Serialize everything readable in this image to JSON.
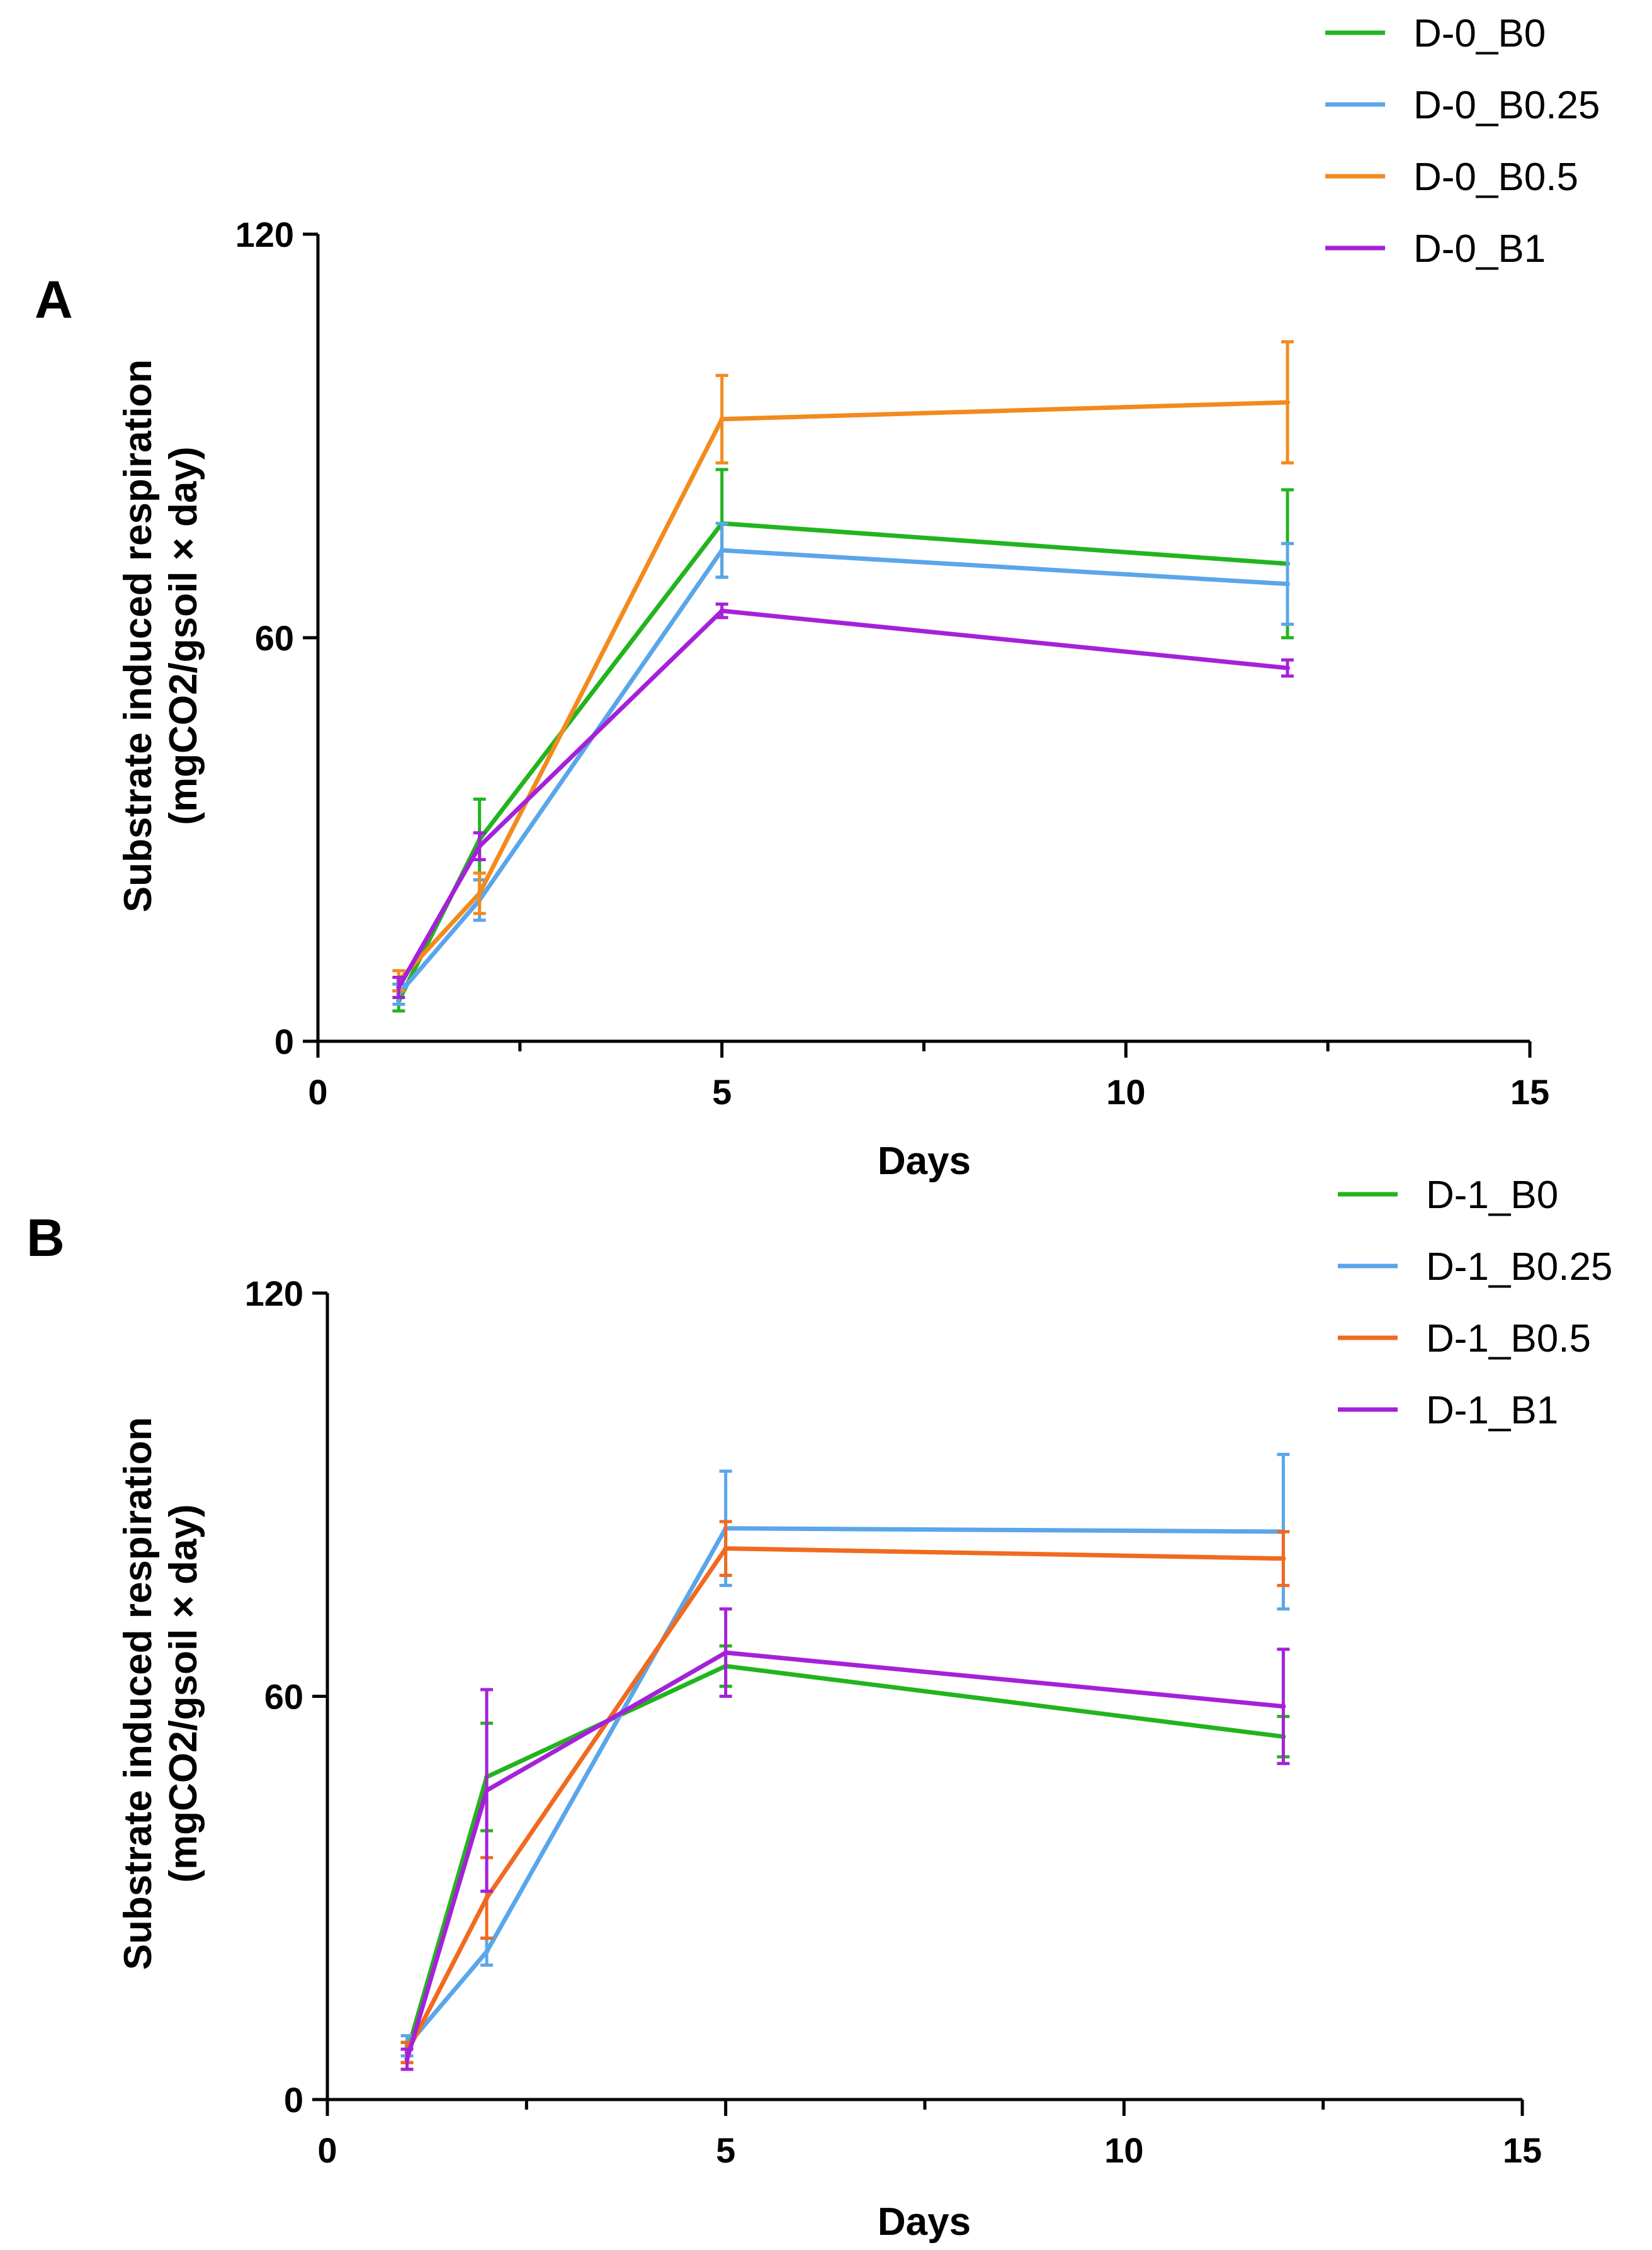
{
  "chart_data": [
    {
      "panel": "A",
      "type": "line",
      "xlabel": "Days",
      "ylabel_line1": "Substrate induced respiration",
      "ylabel_line2": "(mgCO2/gsoil × day)",
      "xlim": [
        0,
        15
      ],
      "ylim": [
        0,
        120
      ],
      "xticks": [
        0,
        5,
        10,
        15
      ],
      "xticks_labels": [
        "0",
        "5",
        "10",
        "15"
      ],
      "yticks": [
        0,
        60,
        120
      ],
      "yticks_labels": [
        "0",
        "60",
        "120"
      ],
      "legend_position": "top-right",
      "x": [
        1,
        2,
        5,
        12
      ],
      "series": [
        {
          "name": "D-0_B0",
          "color": "#22b41e",
          "values": [
            6,
            30,
            77,
            71
          ],
          "errors": [
            1.5,
            6,
            8,
            11
          ]
        },
        {
          "name": "D-0_B0.25",
          "color": "#5aa6ea",
          "values": [
            7,
            21,
            73,
            68
          ],
          "errors": [
            1.5,
            3,
            4,
            6
          ]
        },
        {
          "name": "D-0_B0.5",
          "color": "#f28a1e",
          "values": [
            9,
            22,
            92.5,
            95
          ],
          "errors": [
            1.5,
            3,
            6.5,
            9
          ]
        },
        {
          "name": "D-0_B1",
          "color": "#a521d9",
          "values": [
            8,
            29,
            64,
            55.5
          ],
          "errors": [
            1.5,
            2,
            1,
            1.2
          ]
        }
      ]
    },
    {
      "panel": "B",
      "type": "line",
      "xlabel": "Days",
      "ylabel_line1": "Substrate induced respiration",
      "ylabel_line2": "(mgCO2/gsoil × day)",
      "xlim": [
        0,
        15
      ],
      "ylim": [
        0,
        120
      ],
      "xticks": [
        0,
        5,
        10,
        15
      ],
      "xticks_labels": [
        "0",
        "5",
        "10",
        "15"
      ],
      "yticks": [
        0,
        60,
        120
      ],
      "yticks_labels": [
        "0",
        "60",
        "120"
      ],
      "legend_position": "top-right",
      "x": [
        1,
        2,
        5,
        12
      ],
      "series": [
        {
          "name": "D-1_B0",
          "color": "#22b41e",
          "values": [
            7,
            48,
            64.5,
            54
          ],
          "errors": [
            1.5,
            8,
            3,
            3
          ]
        },
        {
          "name": "D-1_B0.25",
          "color": "#5aa6ea",
          "values": [
            8,
            22,
            85,
            84.5
          ],
          "errors": [
            1.5,
            2,
            8.5,
            11.5
          ]
        },
        {
          "name": "D-1_B0.5",
          "color": "#f06a1f",
          "values": [
            7,
            30,
            82,
            80.5
          ],
          "errors": [
            1.5,
            6,
            4,
            4
          ]
        },
        {
          "name": "D-1_B1",
          "color": "#a521d9",
          "values": [
            6,
            46,
            66.5,
            58.5
          ],
          "errors": [
            1.5,
            15,
            6.5,
            8.5
          ]
        }
      ]
    }
  ]
}
